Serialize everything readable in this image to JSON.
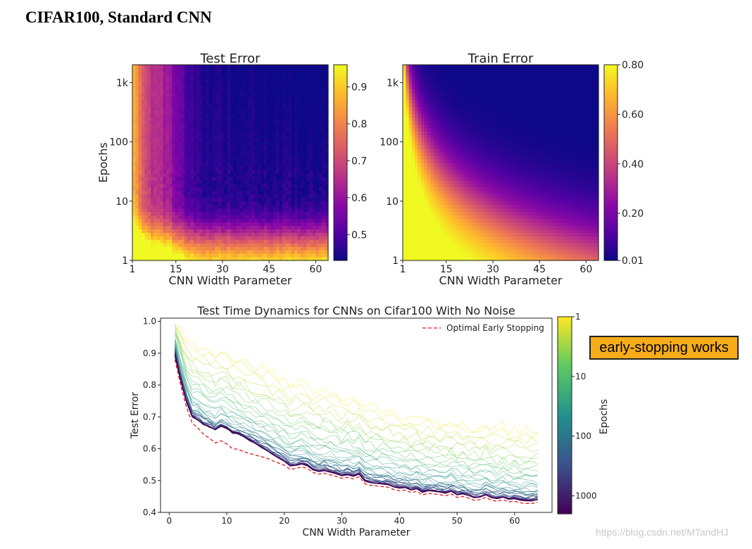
{
  "page": {
    "title": "CIFAR100, Standard CNN",
    "callout": "early-stopping works",
    "watermark": "https://blog.csdn.net/MTandHJ"
  },
  "colors": {
    "plasma": [
      "#0d0887",
      "#5302a3",
      "#8b0aa5",
      "#b83289",
      "#db5c68",
      "#f48849",
      "#febd2a",
      "#f0f921"
    ],
    "viridis": [
      "#440154",
      "#3b528b",
      "#21918c",
      "#5ec962",
      "#fde725"
    ],
    "optimal": "#e31a1c"
  },
  "chart_data": [
    {
      "type": "heatmap",
      "title": "Test Error",
      "xlabel": "CNN Width Parameter",
      "ylabel": "Epochs",
      "x_ticks": [
        "1",
        "15",
        "30",
        "45",
        "60"
      ],
      "x_tick_values": [
        1,
        15,
        30,
        45,
        60
      ],
      "xlim": [
        1,
        64
      ],
      "y_ticks": [
        "1",
        "10",
        "100",
        "1k"
      ],
      "y_tick_values": [
        1,
        10,
        100,
        1000
      ],
      "y_scale": "log",
      "ylim": [
        1,
        2000
      ],
      "colorbar": {
        "ticks": [
          "0.9",
          "0.8",
          "0.7",
          "0.6",
          "0.5"
        ],
        "tick_values": [
          0.9,
          0.8,
          0.7,
          0.6,
          0.5
        ],
        "range": [
          0.43,
          0.96
        ]
      }
    },
    {
      "type": "heatmap",
      "title": "Train Error",
      "xlabel": "CNN Width Parameter",
      "ylabel": "",
      "x_ticks": [
        "1",
        "15",
        "30",
        "45",
        "60"
      ],
      "x_tick_values": [
        1,
        15,
        30,
        45,
        60
      ],
      "xlim": [
        1,
        64
      ],
      "y_ticks": [
        "1",
        "10",
        "100",
        "1k"
      ],
      "y_tick_values": [
        1,
        10,
        100,
        1000
      ],
      "y_scale": "log",
      "ylim": [
        1,
        2000
      ],
      "colorbar": {
        "ticks": [
          "0.80",
          "0.60",
          "0.40",
          "0.20",
          "0.01"
        ],
        "tick_values": [
          0.8,
          0.6,
          0.4,
          0.2,
          0.01
        ],
        "range": [
          0.01,
          0.8
        ]
      }
    },
    {
      "type": "line",
      "title": "Test Time Dynamics for CNNs on Cifar100 With No Noise",
      "xlabel": "CNN Width Parameter",
      "ylabel": "Test Error",
      "xlim": [
        -1.5,
        66.5
      ],
      "ylim": [
        0.4,
        1.01
      ],
      "x_ticks": [
        "0",
        "10",
        "20",
        "30",
        "40",
        "50",
        "60"
      ],
      "x_tick_values": [
        0,
        10,
        20,
        30,
        40,
        50,
        60
      ],
      "y_ticks": [
        "0.4",
        "0.5",
        "0.6",
        "0.7",
        "0.8",
        "0.9",
        "1.0"
      ],
      "y_tick_values": [
        0.4,
        0.5,
        0.6,
        0.7,
        0.8,
        0.9,
        1.0
      ],
      "legend": {
        "label": "Optimal Early Stopping",
        "position": "top-right"
      },
      "colorbar": {
        "label": "Epochs",
        "ticks": [
          "1",
          "10",
          "100",
          "1000"
        ],
        "tick_values": [
          1,
          10,
          100,
          1000
        ],
        "scale": "log",
        "range": [
          1,
          2000
        ]
      },
      "optimal_early_stopping": {
        "x": [
          1,
          2,
          3,
          4,
          5,
          6,
          7,
          8,
          9,
          10,
          11,
          12,
          13,
          14,
          15,
          16,
          17,
          18,
          19,
          20,
          21,
          22,
          23,
          24,
          25,
          26,
          27,
          28,
          29,
          30,
          31,
          32,
          33,
          34,
          35,
          36,
          37,
          38,
          39,
          40,
          41,
          42,
          43,
          44,
          45,
          46,
          47,
          48,
          49,
          50,
          51,
          52,
          53,
          54,
          55,
          56,
          57,
          58,
          59,
          60,
          61,
          62,
          63,
          64
        ],
        "y": [
          0.88,
          0.8,
          0.73,
          0.68,
          0.665,
          0.645,
          0.633,
          0.618,
          0.625,
          0.615,
          0.6,
          0.598,
          0.59,
          0.585,
          0.58,
          0.575,
          0.57,
          0.562,
          0.555,
          0.548,
          0.535,
          0.538,
          0.543,
          0.538,
          0.525,
          0.52,
          0.523,
          0.518,
          0.513,
          0.507,
          0.51,
          0.505,
          0.512,
          0.49,
          0.485,
          0.483,
          0.481,
          0.479,
          0.472,
          0.468,
          0.47,
          0.462,
          0.466,
          0.455,
          0.46,
          0.458,
          0.456,
          0.452,
          0.458,
          0.447,
          0.45,
          0.445,
          0.438,
          0.44,
          0.447,
          0.438,
          0.435,
          0.44,
          0.433,
          0.435,
          0.43,
          0.428,
          0.428,
          0.432
        ]
      }
    }
  ]
}
